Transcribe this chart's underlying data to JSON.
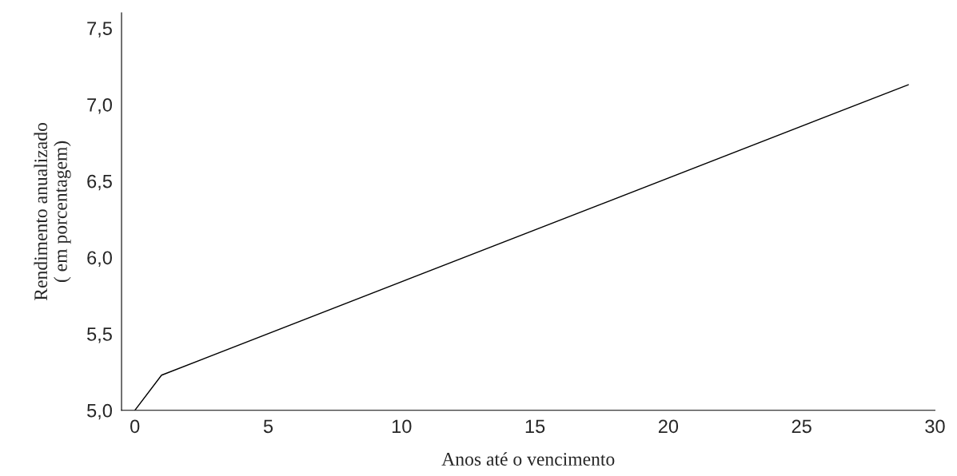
{
  "chart_data": {
    "type": "line",
    "xlabel": "Anos até o vencimento",
    "ylabel": "Rendimento anualizado\n( em porcentagem)",
    "x": [
      0,
      1,
      29
    ],
    "series": [
      {
        "color": "#000000",
        "values": [
          5.0,
          5.23,
          7.13
        ]
      }
    ],
    "xlim": [
      -0.5,
      30
    ],
    "xticks": [
      0,
      5,
      10,
      15,
      20,
      25,
      30
    ],
    "ylim": [
      5.0,
      7.6
    ],
    "yticks": [
      {
        "value": 5.0,
        "label": "5,0"
      },
      {
        "value": 5.5,
        "label": "5,5"
      },
      {
        "value": 6.0,
        "label": "6,0"
      },
      {
        "value": 6.5,
        "label": "6,5"
      },
      {
        "value": 7.0,
        "label": "7,0"
      },
      {
        "value": 7.5,
        "label": "7,5"
      }
    ],
    "grid": false,
    "legend": false
  }
}
